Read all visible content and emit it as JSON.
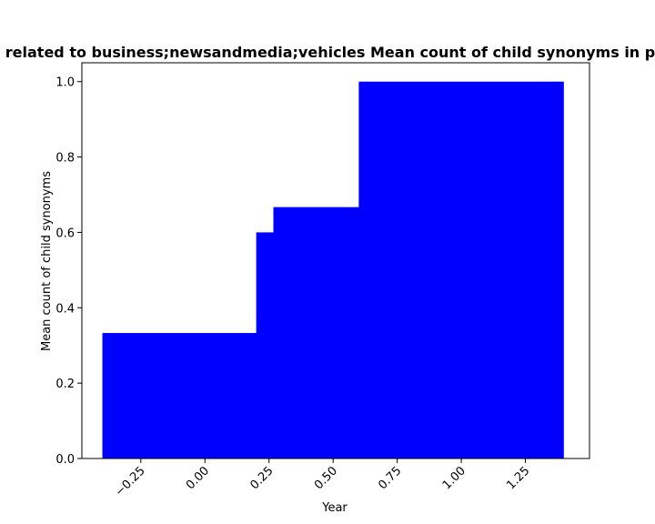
{
  "chart_data": {
    "type": "bar",
    "title": "related to business;newsandmedia;vehicles Mean count of child synonyms in p",
    "xlabel": "Year",
    "ylabel": "Mean count of child synonyms",
    "xlim": [
      -0.48,
      1.5
    ],
    "ylim": [
      0,
      1.05
    ],
    "grid": false,
    "bar_color": "#0000ff",
    "x_ticks": [
      -0.25,
      0.0,
      0.25,
      0.5,
      0.75,
      1.0,
      1.25
    ],
    "x_tick_labels": [
      "−0.25",
      "0.00",
      "0.25",
      "0.50",
      "0.75",
      "1.00",
      "1.25"
    ],
    "y_ticks": [
      0.0,
      0.2,
      0.4,
      0.6,
      0.8,
      1.0
    ],
    "y_tick_labels": [
      "0.0",
      "0.2",
      "0.4",
      "0.6",
      "0.8",
      "1.0"
    ],
    "bars": [
      {
        "x": 0.0,
        "width": 0.8,
        "value": 0.333
      },
      {
        "x": 0.6,
        "width": 0.8,
        "value": 0.6
      },
      {
        "x": 0.667,
        "width": 0.8,
        "value": 0.667
      },
      {
        "x": 1.0,
        "width": 0.8,
        "value": 1.0
      }
    ]
  }
}
